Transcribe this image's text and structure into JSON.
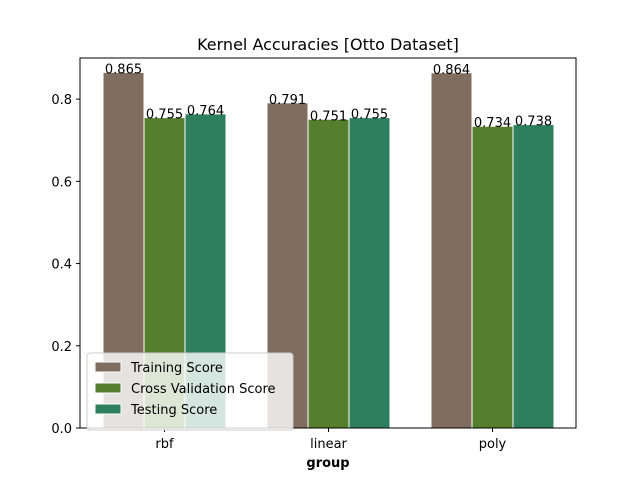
{
  "chart_data": {
    "type": "bar",
    "title": "Kernel Accuracies [Otto Dataset]",
    "xlabel": "group",
    "ylabel": "",
    "categories": [
      "rbf",
      "linear",
      "poly"
    ],
    "series": [
      {
        "name": "Training Score",
        "color": "#7f6d5f",
        "values": [
          0.865,
          0.791,
          0.864
        ]
      },
      {
        "name": "Cross Validation Score",
        "color": "#557f2d",
        "values": [
          0.755,
          0.751,
          0.734
        ]
      },
      {
        "name": "Testing Score",
        "color": "#2d7f5e",
        "values": [
          0.764,
          0.755,
          0.738
        ]
      }
    ],
    "data_labels": [
      [
        "0.865",
        "0.791",
        "0.864"
      ],
      [
        "0.755",
        "0.751",
        "0.734"
      ],
      [
        "0.764",
        "0.755",
        "0.738"
      ]
    ],
    "ylim": [
      0,
      0.9
    ],
    "yticks": [
      0.0,
      0.2,
      0.4,
      0.6,
      0.8
    ],
    "ytick_labels": [
      "0.0",
      "0.2",
      "0.4",
      "0.6",
      "0.8"
    ],
    "grid": false,
    "legend_position": "lower-left"
  }
}
